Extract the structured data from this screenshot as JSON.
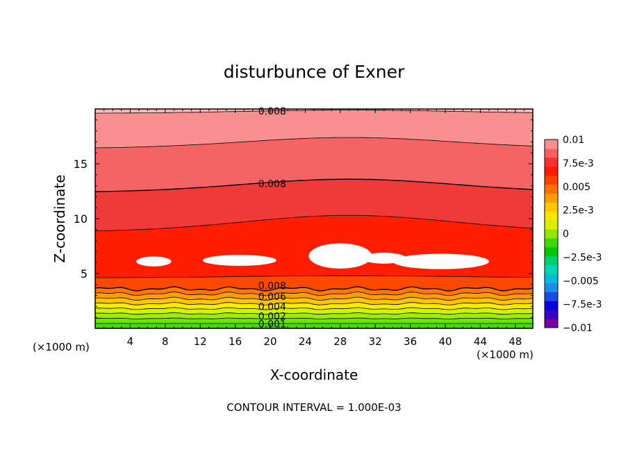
{
  "chart_data": {
    "type": "heatmap",
    "subtype": "filled-contour",
    "title": "disturbunce of Exner",
    "xlabel": "X-coordinate",
    "ylabel": "Z-coordinate",
    "x_unit_left": "(×1000 m)",
    "x_unit_right": "(×1000 m)",
    "xlim": [
      0,
      50
    ],
    "ylim": [
      0,
      20
    ],
    "xticks": [
      4,
      8,
      12,
      16,
      20,
      24,
      28,
      32,
      36,
      40,
      44,
      48
    ],
    "yticks": [
      5,
      10,
      15
    ],
    "contour_interval_label": "CONTOUR INTERVAL = 1.000E-03",
    "contour_interval": 0.001,
    "colorbar": {
      "min": -0.01,
      "max": 0.01,
      "labels": [
        {
          "value": 0.01,
          "text": "0.01"
        },
        {
          "value": 0.0075,
          "text": "7.5e-3"
        },
        {
          "value": 0.005,
          "text": "0.005"
        },
        {
          "value": 0.0025,
          "text": "2.5e-3"
        },
        {
          "value": 0,
          "text": "0"
        },
        {
          "value": -0.0025,
          "text": "−2.5e-3"
        },
        {
          "value": -0.005,
          "text": "−0.005"
        },
        {
          "value": -0.0075,
          "text": "−7.5e-3"
        },
        {
          "value": -0.01,
          "text": "−0.01"
        }
      ],
      "colors": [
        "#7a00a8",
        "#3a00c8",
        "#0000e0",
        "#1a4ae0",
        "#1e8ce6",
        "#00bcd8",
        "#00d8b8",
        "#00d070",
        "#00c800",
        "#40d800",
        "#90e800",
        "#d8f000",
        "#f4e600",
        "#ffc800",
        "#ffa000",
        "#ff7000",
        "#ff4000",
        "#ff1a00",
        "#f83030",
        "#f86060",
        "#f89090"
      ]
    },
    "fill_colors": [
      "#40dc00",
      "#70e400",
      "#a0ec00",
      "#d0f400",
      "#f8ea00",
      "#ffc400",
      "#ff9e00",
      "#ff7800",
      "#ff4800",
      "#ff1e00",
      "#f03a3a",
      "#f46464",
      "#f89090",
      "#fcb8b8"
    ],
    "labeled_contours": [
      {
        "text": "0.001",
        "x": 18,
        "z": 0.4
      },
      {
        "text": "0.002",
        "x": 18,
        "z": 1.1
      },
      {
        "text": "0.004",
        "x": 18,
        "z": 2.0
      },
      {
        "text": "0.006",
        "x": 18,
        "z": 2.9
      },
      {
        "text": "0.008",
        "x": 18,
        "z": 3.9
      },
      {
        "text": "0.008",
        "x": 18,
        "z": 13.2
      },
      {
        "text": "0.008",
        "x": 18,
        "z": 19.8
      }
    ]
  }
}
